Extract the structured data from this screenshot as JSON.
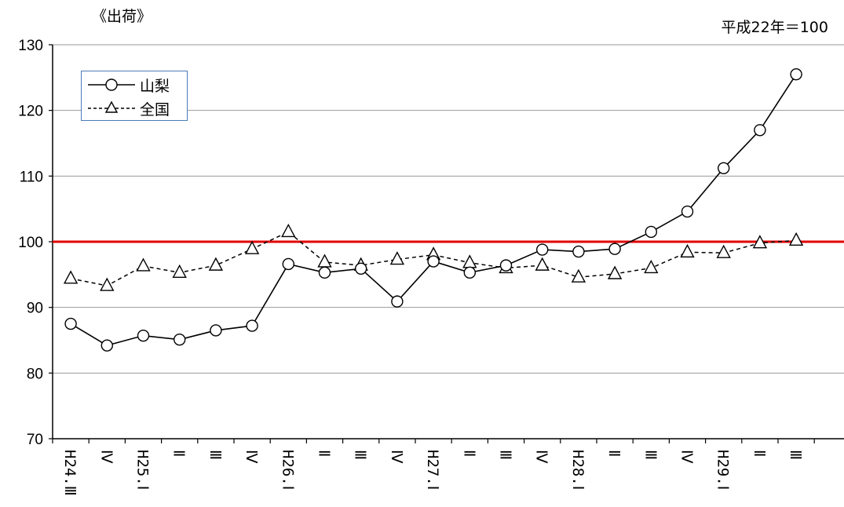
{
  "header": {
    "left_label": "《出荷》",
    "right_label": "平成22年＝100"
  },
  "colors": {
    "grid": "#9a9a9a",
    "reference_line": "#e00000",
    "series": "#000000",
    "legend_border": "#4a7bb7"
  },
  "chart_data": {
    "type": "line",
    "title": "",
    "xlabel": "",
    "ylabel": "",
    "ylim": [
      70,
      130
    ],
    "yticks": [
      70,
      80,
      90,
      100,
      110,
      120,
      130
    ],
    "grid": "horizontal",
    "reference_line": 100,
    "legend_position": "top-left",
    "categories": [
      "H24.Ⅲ",
      "Ⅳ",
      "H25.Ⅰ",
      "Ⅱ",
      "Ⅲ",
      "Ⅳ",
      "H26.Ⅰ",
      "Ⅱ",
      "Ⅲ",
      "Ⅳ",
      "H27.Ⅰ",
      "Ⅱ",
      "Ⅲ",
      "Ⅳ",
      "H28.Ⅰ",
      "Ⅱ",
      "Ⅲ",
      "Ⅳ",
      "H29.Ⅰ",
      "Ⅱ",
      "Ⅲ"
    ],
    "series": [
      {
        "name": "山梨",
        "style": "solid",
        "marker": "circle",
        "values": [
          87.5,
          84.2,
          85.7,
          85.1,
          86.5,
          87.2,
          96.6,
          95.3,
          95.9,
          90.9,
          97.0,
          95.3,
          96.4,
          98.8,
          98.5,
          98.9,
          101.5,
          104.6,
          111.2,
          117.0,
          125.5
        ]
      },
      {
        "name": "全国",
        "style": "dashed",
        "marker": "triangle",
        "values": [
          94.4,
          93.3,
          96.3,
          95.3,
          96.4,
          98.9,
          101.5,
          96.9,
          96.4,
          97.3,
          98.0,
          96.8,
          96.0,
          96.4,
          94.6,
          95.1,
          96.0,
          98.4,
          98.3,
          99.8,
          100.2
        ]
      }
    ]
  }
}
